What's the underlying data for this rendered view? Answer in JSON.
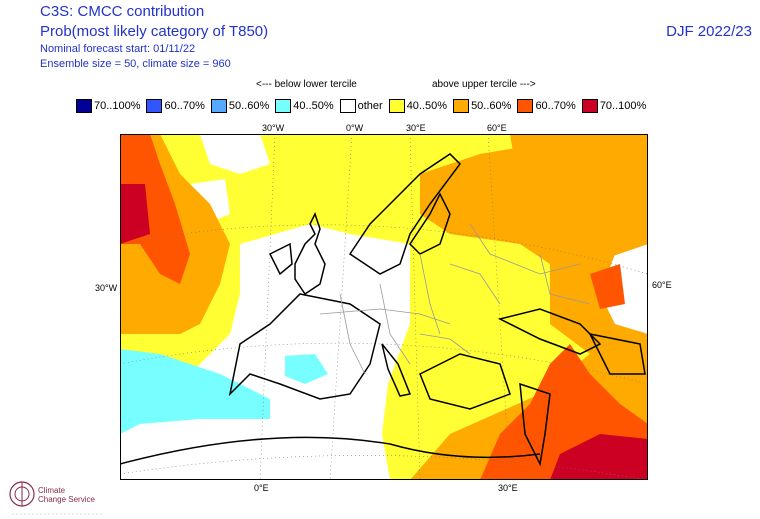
{
  "header": {
    "line1": "C3S: CMCC contribution",
    "line2": "Prob(most likely category of T850)",
    "line3": "Nominal forecast start: 01/11/22",
    "line4": "Ensemble size = 50, climate size = 960",
    "season": "DJF 2022/23"
  },
  "tercile": {
    "below": "<--- below lower tercile",
    "above": "above upper tercile --->"
  },
  "legend": [
    {
      "label": "70..100%",
      "color": "#000099"
    },
    {
      "label": "60..70%",
      "color": "#3355ff"
    },
    {
      "label": "50..60%",
      "color": "#55aaff"
    },
    {
      "label": "40..50%",
      "color": "#77ffff"
    },
    {
      "label": "other",
      "color": "#ffffff"
    },
    {
      "label": "40..50%",
      "color": "#ffff33"
    },
    {
      "label": "50..60%",
      "color": "#ffaa00"
    },
    {
      "label": "60..70%",
      "color": "#ff5500"
    },
    {
      "label": "70..100%",
      "color": "#cc0022"
    }
  ],
  "gridlabels": {
    "top": [
      "30°W",
      "0°W",
      "30°E",
      "60°E"
    ],
    "left": "30°W",
    "right": "60°E",
    "bottom": [
      "0°E",
      "30°E"
    ]
  },
  "logo": {
    "line1": "Climate",
    "line2": "Change Service"
  }
}
